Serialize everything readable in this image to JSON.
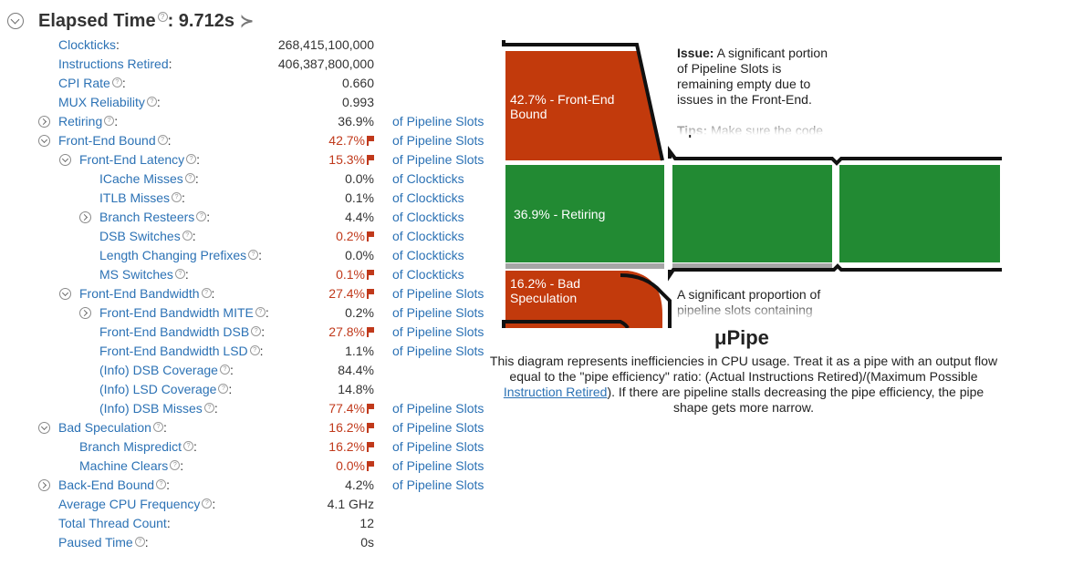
{
  "header": {
    "title": "Elapsed Time",
    "value": ": 9.712s",
    "help": "?"
  },
  "rows": [
    {
      "label": "Clockticks",
      "value": "268,415,100,000",
      "unit": "",
      "red": false,
      "help": false,
      "toggle": "",
      "indent": 0
    },
    {
      "label": "Instructions Retired",
      "value": "406,387,800,000",
      "unit": "",
      "red": false,
      "help": false,
      "toggle": "",
      "indent": 0
    },
    {
      "label": "CPI Rate",
      "value": "0.660",
      "unit": "",
      "red": false,
      "help": true,
      "toggle": "",
      "indent": 0
    },
    {
      "label": "MUX Reliability",
      "value": "0.993",
      "unit": "",
      "red": false,
      "help": true,
      "toggle": "",
      "indent": 0
    },
    {
      "label": "Retiring",
      "value": "36.9%",
      "unit": "of Pipeline Slots",
      "red": false,
      "help": true,
      "toggle": "col",
      "indent": 0
    },
    {
      "label": "Front-End Bound",
      "value": "42.7%",
      "unit": "of Pipeline Slots",
      "red": true,
      "help": true,
      "toggle": "exp",
      "indent": 0
    },
    {
      "label": "Front-End Latency",
      "value": "15.3%",
      "unit": "of Pipeline Slots",
      "red": true,
      "help": true,
      "toggle": "exp",
      "indent": 1
    },
    {
      "label": "ICache Misses",
      "value": "0.0%",
      "unit": "of Clockticks",
      "red": false,
      "help": true,
      "toggle": "",
      "indent": 2
    },
    {
      "label": "ITLB Misses",
      "value": "0.1%",
      "unit": "of Clockticks",
      "red": false,
      "help": true,
      "toggle": "",
      "indent": 2
    },
    {
      "label": "Branch Resteers",
      "value": "4.4%",
      "unit": "of Clockticks",
      "red": false,
      "help": true,
      "toggle": "col",
      "indent": 2
    },
    {
      "label": "DSB Switches",
      "value": "0.2%",
      "unit": "of Clockticks",
      "red": true,
      "help": true,
      "toggle": "",
      "indent": 2
    },
    {
      "label": "Length Changing Prefixes",
      "value": "0.0%",
      "unit": "of Clockticks",
      "red": false,
      "help": true,
      "toggle": "",
      "indent": 2
    },
    {
      "label": "MS Switches",
      "value": "0.1%",
      "unit": "of Clockticks",
      "red": true,
      "help": true,
      "toggle": "",
      "indent": 2
    },
    {
      "label": "Front-End Bandwidth",
      "value": "27.4%",
      "unit": "of Pipeline Slots",
      "red": true,
      "help": true,
      "toggle": "exp",
      "indent": 1
    },
    {
      "label": "Front-End Bandwidth MITE",
      "value": "0.2%",
      "unit": "of Pipeline Slots",
      "red": false,
      "help": true,
      "toggle": "col",
      "indent": 2
    },
    {
      "label": "Front-End Bandwidth DSB",
      "value": "27.8%",
      "unit": "of Pipeline Slots",
      "red": true,
      "help": true,
      "toggle": "",
      "indent": 2
    },
    {
      "label": "Front-End Bandwidth LSD",
      "value": "1.1%",
      "unit": "of Pipeline Slots",
      "red": false,
      "help": true,
      "toggle": "",
      "indent": 2
    },
    {
      "label": "(Info) DSB Coverage",
      "value": "84.4%",
      "unit": "",
      "red": false,
      "help": true,
      "toggle": "",
      "indent": 2
    },
    {
      "label": "(Info) LSD Coverage",
      "value": "14.8%",
      "unit": "",
      "red": false,
      "help": true,
      "toggle": "",
      "indent": 2
    },
    {
      "label": "(Info) DSB Misses",
      "value": "77.4%",
      "unit": "of Pipeline Slots",
      "red": true,
      "help": true,
      "toggle": "",
      "indent": 2
    },
    {
      "label": "Bad Speculation",
      "value": "16.2%",
      "unit": "of Pipeline Slots",
      "red": true,
      "help": true,
      "toggle": "exp",
      "indent": 0
    },
    {
      "label": "Branch Mispredict",
      "value": "16.2%",
      "unit": "of Pipeline Slots",
      "red": true,
      "help": true,
      "toggle": "",
      "indent": 1
    },
    {
      "label": "Machine Clears",
      "value": "0.0%",
      "unit": "of Pipeline Slots",
      "red": true,
      "help": true,
      "toggle": "",
      "indent": 1
    },
    {
      "label": "Back-End Bound",
      "value": "4.2%",
      "unit": "of Pipeline Slots",
      "red": false,
      "help": true,
      "toggle": "col",
      "indent": 0
    },
    {
      "label": "Average CPU Frequency",
      "value": "4.1 GHz",
      "unit": "",
      "red": false,
      "help": true,
      "toggle": "",
      "indent": 0
    },
    {
      "label": "Total Thread Count",
      "value": "12",
      "unit": "",
      "red": false,
      "help": false,
      "toggle": "",
      "indent": 0
    },
    {
      "label": "Paused Time",
      "value": "0s",
      "unit": "",
      "red": false,
      "help": true,
      "toggle": "",
      "indent": 0
    }
  ],
  "pipe": {
    "frontend_label_1": "42.7% - Front-End",
    "frontend_label_2": "Bound",
    "retiring_label": "36.9% - Retiring",
    "badspec_label_1": "16.2% - Bad",
    "badspec_label_2": "Speculation",
    "colors": {
      "frontend": "#c23a0c",
      "retiring": "#228a33",
      "badspec": "#c23a0c",
      "backend": "#a6a6a6"
    }
  },
  "issue": {
    "issue_bold": "Issue:",
    "issue_text": " A significant portion of Pipeline Slots is remaining empty due to issues in the Front-End.",
    "tips_bold": "Tips:",
    "tips_text": " Make sure the code",
    "issue2_text": "A significant proportion of pipeline slots containing"
  },
  "upipe": {
    "title": "μPipe",
    "desc_1": "This diagram represents inefficiencies in CPU usage. Treat it as a pipe with an output flow equal to the \"pipe efficiency\" ratio: (Actual Instructions Retired)/(Maximum Possible ",
    "link": "Instruction Retired",
    "desc_2": "). If there are pipeline stalls decreasing the pipe efficiency, the pipe shape gets more narrow."
  }
}
